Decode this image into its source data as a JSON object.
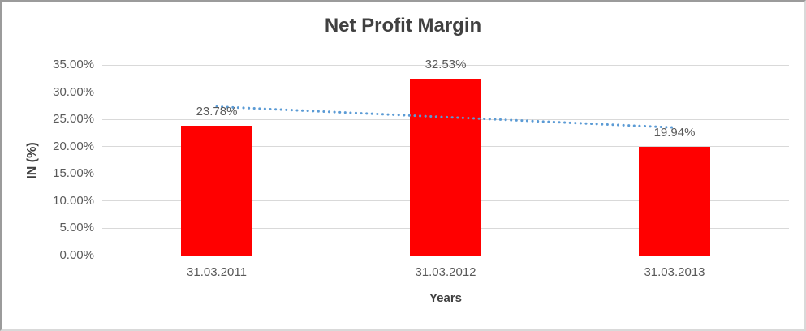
{
  "chart_data": {
    "type": "bar",
    "title": "Net Profit Margin",
    "xlabel": "Years",
    "ylabel": "IN (%)",
    "categories": [
      "31.03.2011",
      "31.03.2012",
      "31.03.2013"
    ],
    "values": [
      23.78,
      32.53,
      19.94
    ],
    "data_labels": [
      "23.78%",
      "32.53%",
      "19.94%"
    ],
    "ylim": [
      0,
      35
    ],
    "yticks": [
      0,
      5,
      10,
      15,
      20,
      25,
      30,
      35
    ],
    "ytick_labels": [
      "0.00%",
      "5.00%",
      "10.00%",
      "15.00%",
      "20.00%",
      "25.00%",
      "30.00%",
      "35.00%"
    ],
    "grid": true,
    "legend": "none",
    "bar_color": "#ff0000",
    "trendline": {
      "type": "linear",
      "style": "dotted",
      "color": "#5b9bd5",
      "start_value": 27.34,
      "end_value": 23.5
    },
    "colors": {
      "title_text": "#404040",
      "axis_text": "#595959",
      "gridline": "#d9d9d9"
    }
  }
}
